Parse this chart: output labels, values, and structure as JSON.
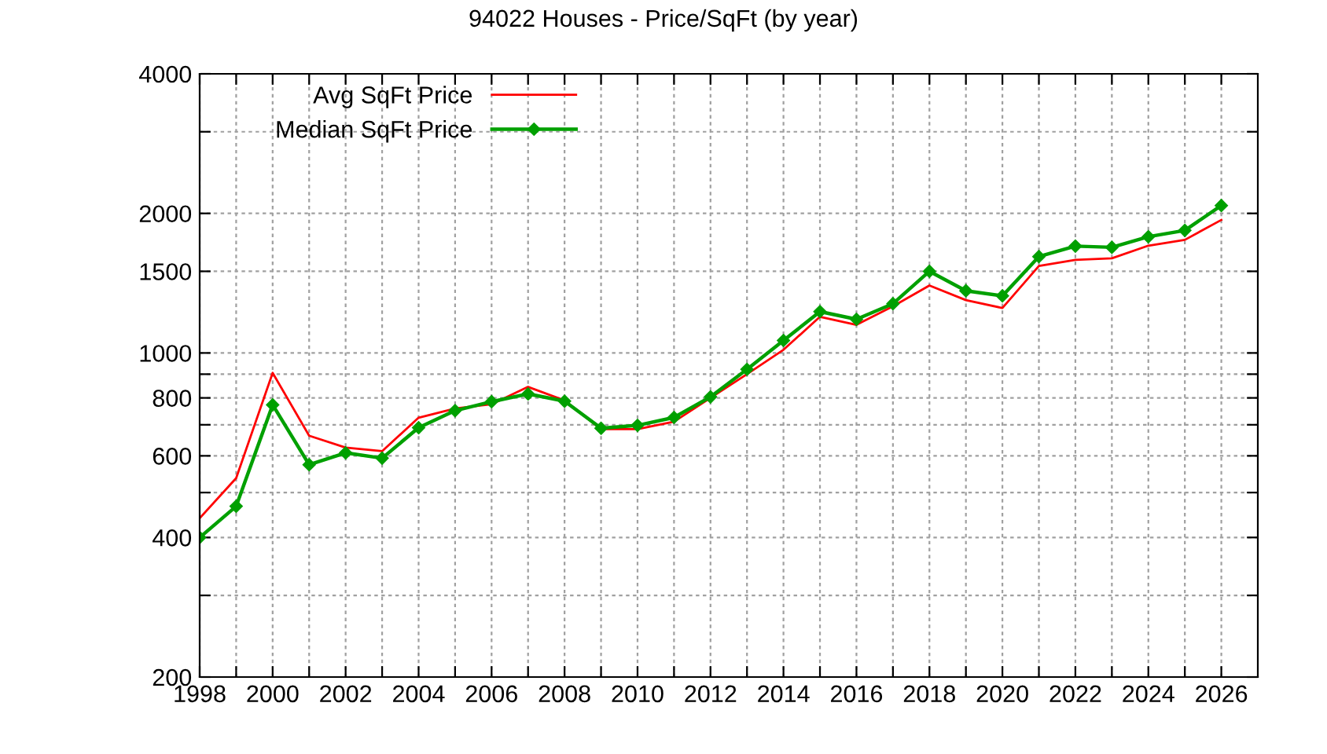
{
  "chart_data": {
    "type": "line",
    "title": "94022 Houses - Price/SqFt (by year)",
    "x": [
      1998,
      1999,
      2000,
      2001,
      2002,
      2003,
      2004,
      2005,
      2006,
      2007,
      2008,
      2009,
      2010,
      2011,
      2012,
      2013,
      2014,
      2015,
      2016,
      2017,
      2018,
      2019,
      2020,
      2021,
      2022,
      2023,
      2024,
      2025,
      2026
    ],
    "series": [
      {
        "name": "Avg SqFt Price",
        "color": "#ff0000",
        "marker": "none",
        "values": [
          440,
          537,
          906,
          663,
          625,
          614,
          725,
          759,
          775,
          845,
          790,
          685,
          685,
          711,
          800,
          900,
          1016,
          1197,
          1150,
          1261,
          1398,
          1300,
          1250,
          1540,
          1588,
          1600,
          1704,
          1754,
          1936
        ]
      },
      {
        "name": "Median SqFt Price",
        "color": "#00a000",
        "marker": "diamond",
        "values": [
          400,
          467,
          773,
          574,
          609,
          593,
          690,
          751,
          785,
          816,
          787,
          688,
          698,
          726,
          804,
          922,
          1064,
          1228,
          1182,
          1277,
          1500,
          1362,
          1328,
          1614,
          1700,
          1690,
          1781,
          1838,
          2080
        ]
      }
    ],
    "log": "y",
    "xlim": [
      1998,
      2027
    ],
    "xticks": [
      1998,
      {
        "value": 1999,
        "label": null
      },
      2000,
      {
        "value": 2001,
        "label": null
      },
      2002,
      {
        "value": 2003,
        "label": null
      },
      2004,
      {
        "value": 2005,
        "label": null
      },
      2006,
      {
        "value": 2007,
        "label": null
      },
      2008,
      {
        "value": 2009,
        "label": null
      },
      2010,
      {
        "value": 2011,
        "label": null
      },
      2012,
      {
        "value": 2013,
        "label": null
      },
      2014,
      {
        "value": 2015,
        "label": null
      },
      2016,
      {
        "value": 2017,
        "label": null
      },
      2018,
      {
        "value": 2019,
        "label": null
      },
      2020,
      {
        "value": 2021,
        "label": null
      },
      2022,
      {
        "value": 2023,
        "label": null
      },
      2024,
      {
        "value": 2025,
        "label": null
      },
      2026
    ],
    "ylim": [
      200,
      4000
    ],
    "yticks": [
      200,
      {
        "value": 300,
        "label": null
      },
      400,
      {
        "value": 500,
        "label": null
      },
      600,
      {
        "value": 700,
        "label": null
      },
      800,
      {
        "value": 900,
        "label": null
      },
      1000,
      1500,
      2000,
      {
        "value": 3000,
        "label": null
      },
      4000
    ],
    "grid": true,
    "legend": "top left"
  }
}
